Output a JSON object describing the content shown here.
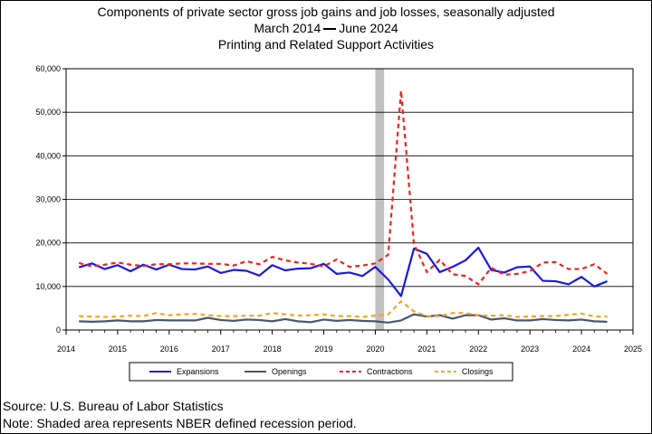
{
  "title_line1": "Components of private sector gross job gains and job losses, seasonally adjusted",
  "title_start": "March 2014",
  "title_end": "June 2024",
  "title_line3": "Printing and Related Support Activities",
  "source_note": "Source: U.S. Bureau of Labor Statistics",
  "recession_note": "Note: Shaded area represents NBER defined recession period.",
  "chart_data": {
    "type": "line",
    "x_start": 2014.25,
    "x_step": 0.25,
    "xlim": [
      2014,
      2025
    ],
    "ylim": [
      0,
      60000
    ],
    "x_ticks": [
      "2014",
      "2015",
      "2016",
      "2017",
      "2018",
      "2019",
      "2020",
      "2021",
      "2022",
      "2023",
      "2024",
      "2025"
    ],
    "y_ticks": [
      "0",
      "10,000",
      "20,000",
      "30,000",
      "40,000",
      "50,000",
      "60,000"
    ],
    "grid": "horizontal",
    "legend_position": "bottom",
    "recession": {
      "start": 2020.0,
      "end": 2020.17,
      "color": "#c0c0c0"
    },
    "series": [
      {
        "name": "Expansions",
        "color": "#1a1adb",
        "dash": "solid",
        "width": 2.2,
        "values": [
          14400,
          15300,
          14000,
          14900,
          13500,
          15000,
          13900,
          15000,
          14000,
          13900,
          14600,
          13100,
          13800,
          13600,
          12500,
          14900,
          13700,
          14100,
          14200,
          15200,
          12900,
          13200,
          12400,
          14500,
          11600,
          7800,
          18700,
          17500,
          13300,
          14500,
          16000,
          18900,
          13800,
          13200,
          14400,
          14600,
          11300,
          11200,
          10500,
          12200,
          10000,
          11200
        ]
      },
      {
        "name": "Openings",
        "color": "#4a5570",
        "dash": "solid",
        "width": 2.2,
        "values": [
          2000,
          1900,
          2000,
          2200,
          2000,
          2000,
          2300,
          2200,
          2200,
          2200,
          2800,
          2300,
          2100,
          2400,
          2300,
          2000,
          2500,
          2000,
          1800,
          2400,
          2100,
          2300,
          2100,
          2000,
          1700,
          2200,
          3600,
          3100,
          3400,
          2600,
          3400,
          3400,
          2400,
          2700,
          2200,
          2200,
          2500,
          2300,
          2200,
          2400,
          2000,
          1900
        ]
      },
      {
        "name": "Contractions",
        "color": "#ee2222",
        "dash": "5,4",
        "width": 2.2,
        "values": [
          15400,
          14600,
          15000,
          15500,
          15000,
          14700,
          15100,
          15100,
          15300,
          15300,
          15200,
          15200,
          14800,
          15800,
          15100,
          16800,
          16000,
          15500,
          15200,
          14600,
          16200,
          14500,
          14800,
          15300,
          17300,
          55000,
          19800,
          13300,
          16100,
          12800,
          12400,
          10500,
          14300,
          12700,
          12900,
          13500,
          15500,
          15600,
          14000,
          14000,
          15100,
          12900
        ]
      },
      {
        "name": "Closings",
        "color": "#f4a620",
        "dash": "5,4",
        "width": 2.2,
        "values": [
          3200,
          3100,
          3000,
          3100,
          3300,
          3200,
          3900,
          3400,
          3600,
          3700,
          3400,
          3200,
          3200,
          3300,
          3300,
          3900,
          3600,
          3300,
          3400,
          3600,
          3200,
          3200,
          3000,
          3300,
          3600,
          6600,
          4300,
          3200,
          3200,
          3900,
          3900,
          3400,
          3300,
          3400,
          3000,
          3100,
          3200,
          3200,
          3500,
          3800,
          3100,
          3100
        ]
      }
    ]
  }
}
